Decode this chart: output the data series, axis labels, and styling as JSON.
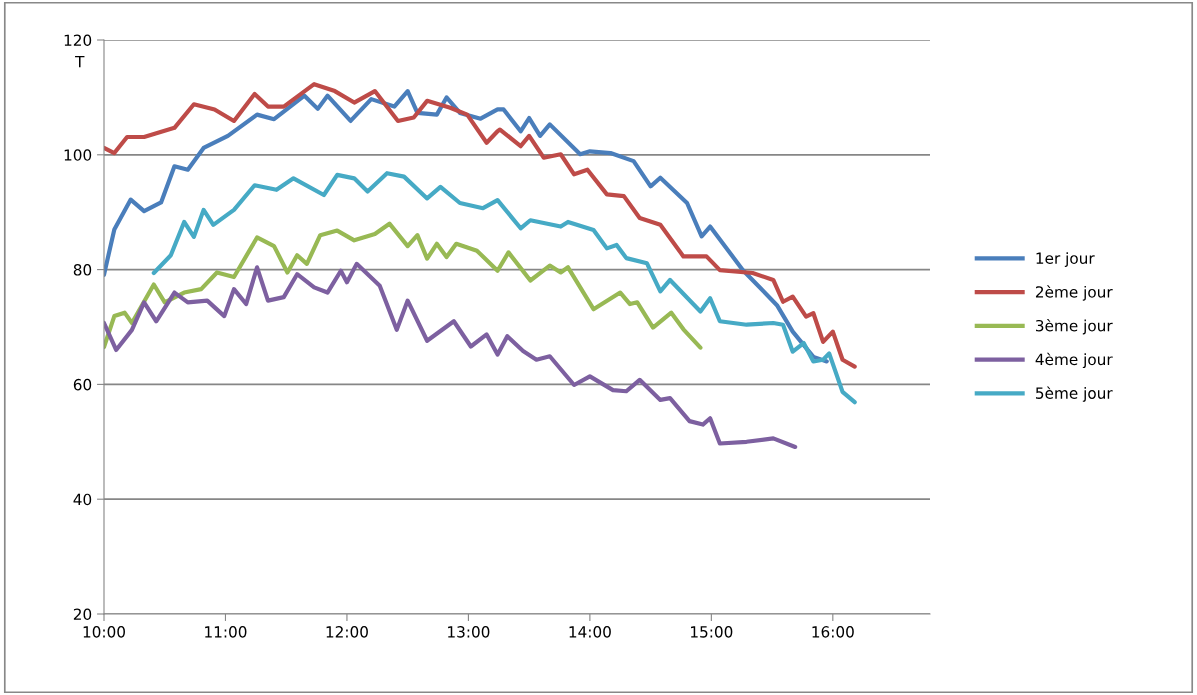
{
  "chart_data": {
    "type": "line",
    "ylabel": "T",
    "xlim": [
      10,
      16.8
    ],
    "ylim": [
      20,
      120
    ],
    "yticks": [
      20,
      40,
      60,
      80,
      100,
      120
    ],
    "xticks": [
      {
        "value": 10,
        "label": "10:00"
      },
      {
        "value": 11,
        "label": "11:00"
      },
      {
        "value": 12,
        "label": "12:00"
      },
      {
        "value": 13,
        "label": "13:00"
      },
      {
        "value": 14,
        "label": "14:00"
      },
      {
        "value": 15,
        "label": "15:00"
      },
      {
        "value": 16,
        "label": "16:00"
      }
    ],
    "grid": "y",
    "legend": "right",
    "marker": "none",
    "line_style": "solid",
    "series": [
      {
        "name": "1er jour",
        "color": "#4a7ebb",
        "x": [
          10.0,
          10.085,
          10.22,
          10.33,
          10.47,
          10.58,
          10.69,
          10.82,
          11.02,
          11.26,
          11.4,
          11.65,
          11.76,
          11.84,
          12.03,
          12.2,
          12.39,
          12.5,
          12.58,
          12.74,
          12.82,
          12.93,
          13.1,
          13.24,
          13.29,
          13.43,
          13.5,
          13.59,
          13.67,
          13.92,
          14.0,
          14.17,
          14.36,
          14.5,
          14.58,
          14.8,
          14.92,
          14.99,
          15.26,
          15.54,
          15.67,
          15.84,
          15.95
        ],
        "values": [
          79.1,
          87,
          92.2,
          90.2,
          91.7,
          98,
          97.4,
          101.2,
          103.3,
          107,
          106.2,
          110.3,
          108,
          110.3,
          105.9,
          109.7,
          108.4,
          111.1,
          107.3,
          107,
          110,
          107.3,
          106.3,
          107.9,
          107.9,
          104.1,
          106.4,
          103.3,
          105.3,
          100.1,
          100.6,
          100.3,
          98.9,
          94.5,
          96,
          91.6,
          85.8,
          87.5,
          79.9,
          73.8,
          69.2,
          64.8,
          64
        ]
      },
      {
        "name": "2ème jour",
        "color": "#be4b48",
        "x": [
          10.0,
          10.085,
          10.19,
          10.33,
          10.58,
          10.74,
          10.91,
          11.07,
          11.24,
          11.35,
          11.48,
          11.73,
          11.9,
          12.06,
          12.23,
          12.42,
          12.55,
          12.66,
          12.85,
          12.99,
          13.15,
          13.24,
          13.26,
          13.43,
          13.5,
          13.62,
          13.76,
          13.87,
          13.98,
          14.14,
          14.28,
          14.41,
          14.58,
          14.77,
          14.96,
          15.07,
          15.34,
          15.51,
          15.59,
          15.67,
          15.78,
          15.84,
          15.92,
          16.0,
          16.08,
          16.18
        ],
        "values": [
          101.2,
          100.3,
          103.1,
          103.1,
          104.7,
          108.8,
          107.9,
          105.9,
          110.6,
          108.4,
          108.4,
          112.3,
          111.1,
          109.1,
          111.1,
          105.9,
          106.5,
          109.4,
          108.2,
          107,
          102.1,
          104.1,
          104.4,
          101.5,
          103.3,
          99.5,
          100.1,
          96.6,
          97.4,
          93.1,
          92.8,
          89,
          87.8,
          82.3,
          82.3,
          79.9,
          79.4,
          78.2,
          74.4,
          75.3,
          71.8,
          72.4,
          67.4,
          69.2,
          64.3,
          63.1
        ]
      },
      {
        "name": "3ème jour",
        "color": "#98b954",
        "x": [
          10.0,
          10.085,
          10.17,
          10.23,
          10.41,
          10.5,
          10.66,
          10.8,
          10.93,
          11.07,
          11.26,
          11.4,
          11.51,
          11.59,
          11.67,
          11.78,
          11.92,
          12.06,
          12.23,
          12.35,
          12.5,
          12.58,
          12.66,
          12.74,
          12.82,
          12.9,
          13.07,
          13.24,
          13.33,
          13.51,
          13.67,
          13.76,
          13.82,
          14.03,
          14.25,
          14.33,
          14.39,
          14.52,
          14.67,
          14.77,
          14.91
        ],
        "values": [
          66.5,
          71.9,
          72.5,
          70.7,
          77.4,
          74.3,
          76,
          76.6,
          79.5,
          78.7,
          85.6,
          84.1,
          79.5,
          82.5,
          81,
          86,
          86.8,
          85.1,
          86.2,
          88,
          84.1,
          86,
          81.9,
          84.5,
          82.2,
          84.5,
          83.3,
          79.8,
          83,
          78.1,
          80.7,
          79.5,
          80.4,
          73.1,
          76,
          74,
          74.3,
          69.9,
          72.5,
          69.6,
          66.4
        ]
      },
      {
        "name": "4ème jour",
        "color": "#7d60a0",
        "x": [
          10.0,
          10.1,
          10.23,
          10.33,
          10.43,
          10.58,
          10.69,
          10.85,
          10.99,
          11.07,
          11.17,
          11.26,
          11.35,
          11.48,
          11.59,
          11.73,
          11.84,
          11.95,
          12.0,
          12.08,
          12.27,
          12.41,
          12.5,
          12.66,
          12.88,
          13.02,
          13.15,
          13.24,
          13.32,
          13.45,
          13.56,
          13.67,
          13.87,
          14.0,
          14.19,
          14.3,
          14.41,
          14.58,
          14.66,
          14.82,
          14.93,
          14.99,
          15.07,
          15.29,
          15.51,
          15.69
        ],
        "values": [
          70.7,
          66,
          69.5,
          74.3,
          71,
          76,
          74.3,
          74.6,
          71.9,
          76.6,
          74,
          80.4,
          74.6,
          75.2,
          79.2,
          76.9,
          76,
          79.8,
          77.8,
          81,
          77.2,
          69.5,
          74.6,
          67.6,
          71,
          66.6,
          68.7,
          65.2,
          68.4,
          65.8,
          64.3,
          64.9,
          59.9,
          61.4,
          59,
          58.8,
          60.8,
          57.3,
          57.6,
          53.6,
          53,
          54.1,
          49.7,
          50,
          50.6,
          49.1
        ]
      },
      {
        "name": "5ème jour",
        "color": "#46aac5",
        "x": [
          10.41,
          10.55,
          10.66,
          10.74,
          10.82,
          10.9,
          11.07,
          11.24,
          11.42,
          11.56,
          11.81,
          11.92,
          12.06,
          12.17,
          12.33,
          12.47,
          12.66,
          12.77,
          12.93,
          13.12,
          13.24,
          13.43,
          13.51,
          13.76,
          13.82,
          14.03,
          14.14,
          14.22,
          14.3,
          14.47,
          14.58,
          14.66,
          14.91,
          14.99,
          15.07,
          15.29,
          15.51,
          15.59,
          15.67,
          15.76,
          15.84,
          15.92,
          15.97,
          16.08,
          16.18
        ],
        "values": [
          79.4,
          82.5,
          88.3,
          85.7,
          90.4,
          87.8,
          90.4,
          94.7,
          93.9,
          95.9,
          93,
          96.5,
          95.9,
          93.6,
          96.8,
          96.2,
          92.4,
          94.4,
          91.6,
          90.7,
          92.1,
          87.2,
          88.6,
          87.5,
          88.3,
          86.9,
          83.7,
          84.3,
          82,
          81.1,
          76.2,
          78.2,
          72.7,
          75,
          71,
          70.4,
          70.7,
          70.4,
          65.7,
          67.2,
          64,
          64.3,
          65.4,
          58.7,
          56.9
        ]
      }
    ]
  }
}
